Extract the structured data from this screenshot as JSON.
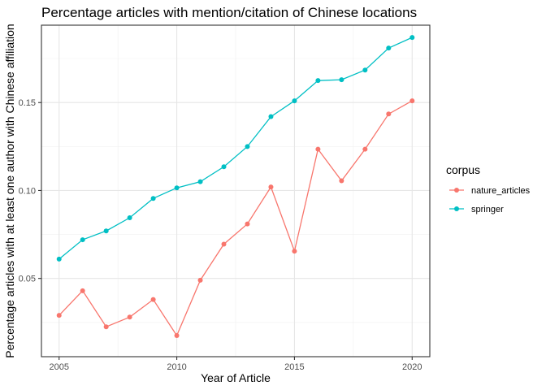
{
  "chart_data": {
    "type": "line",
    "title": "Percentage articles with mention/citation of Chinese locations",
    "xlabel": "Year of Article",
    "ylabel": "Percentage articles with at least one author with Chinese affiliation",
    "x": [
      2005,
      2006,
      2007,
      2008,
      2009,
      2010,
      2011,
      2012,
      2013,
      2014,
      2015,
      2016,
      2017,
      2018,
      2019,
      2020
    ],
    "x_ticks": [
      "2005",
      "2010",
      "2015",
      "2020"
    ],
    "y_ticks": [
      "0.05",
      "0.10",
      "0.15"
    ],
    "xlim": [
      2004.25,
      2020.75
    ],
    "ylim": [
      0.0055,
      0.194
    ],
    "grid": true,
    "legend": {
      "title": "corpus",
      "placement": "right"
    },
    "series": [
      {
        "name": "nature_articles",
        "color": "#F8766D",
        "values": [
          0.029,
          0.043,
          0.0225,
          0.028,
          0.038,
          0.0175,
          0.049,
          0.0695,
          0.081,
          0.102,
          0.0655,
          0.1235,
          0.1055,
          0.1235,
          0.1435,
          0.151
        ]
      },
      {
        "name": "springer",
        "color": "#00BFC4",
        "values": [
          0.061,
          0.072,
          0.077,
          0.0845,
          0.0955,
          0.1015,
          0.105,
          0.1135,
          0.125,
          0.142,
          0.151,
          0.1625,
          0.163,
          0.1685,
          0.181,
          0.187
        ]
      }
    ]
  }
}
